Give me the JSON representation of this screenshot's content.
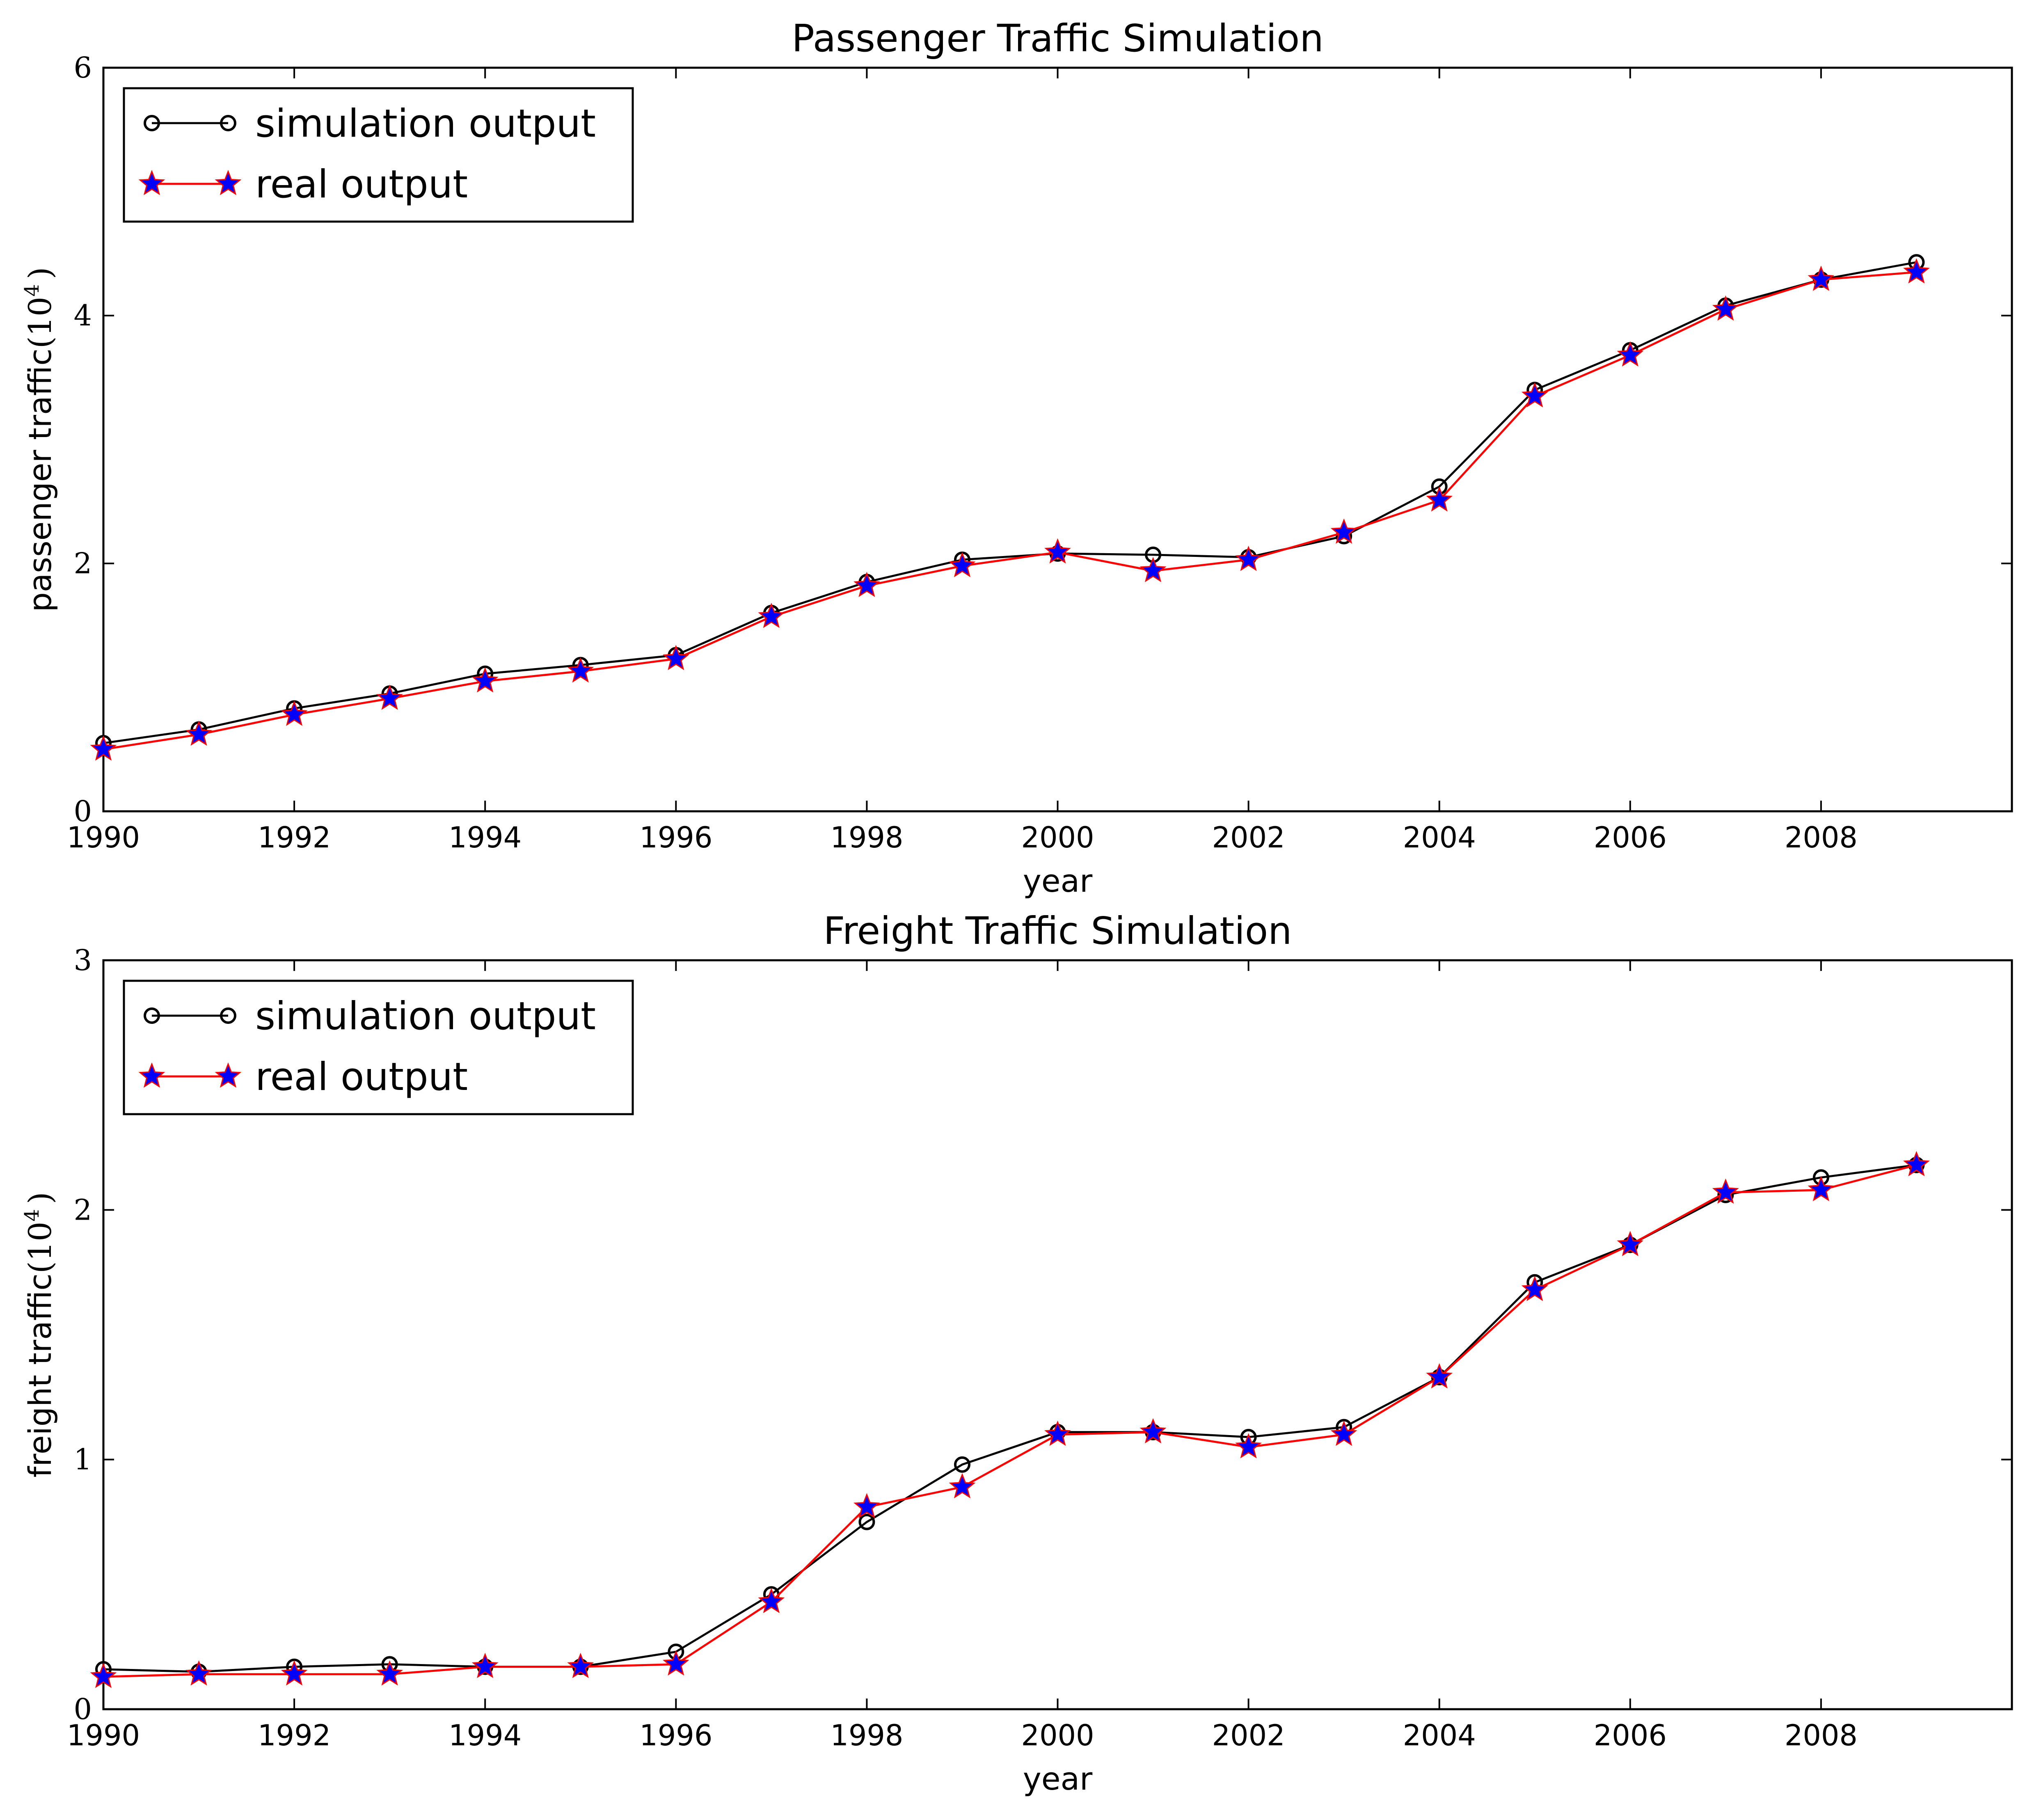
{
  "chart_data": [
    {
      "type": "line",
      "title": "Passenger Traffic Simulation",
      "xlabel": "year",
      "ylabel_prefix": "passenger traffic",
      "ylabel_unit_base": "(10",
      "ylabel_unit_exp": "4",
      "ylabel_unit_close": ")",
      "xlim": [
        1990,
        2010
      ],
      "ylim": [
        0,
        6
      ],
      "x_ticks": [
        1990,
        1992,
        1994,
        1996,
        1998,
        2000,
        2002,
        2004,
        2006,
        2008
      ],
      "y_ticks": [
        0,
        2,
        4,
        6
      ],
      "grid": false,
      "legend_position": "upper-left",
      "x": [
        1990,
        1991,
        1992,
        1993,
        1994,
        1995,
        1996,
        1997,
        1998,
        1999,
        2000,
        2001,
        2002,
        2003,
        2004,
        2005,
        2006,
        2007,
        2008,
        2009
      ],
      "series": [
        {
          "name": "simulation output",
          "color": "#000000",
          "marker": "circle",
          "values": [
            0.55,
            0.66,
            0.83,
            0.95,
            1.11,
            1.18,
            1.26,
            1.6,
            1.85,
            2.03,
            2.08,
            2.07,
            2.05,
            2.22,
            2.62,
            3.4,
            3.72,
            4.08,
            4.29,
            4.43
          ]
        },
        {
          "name": "real output",
          "color": "#ff0000",
          "marker": "star",
          "marker_color": "#0000ff",
          "values": [
            0.5,
            0.62,
            0.78,
            0.91,
            1.05,
            1.13,
            1.23,
            1.57,
            1.82,
            1.98,
            2.09,
            1.94,
            2.03,
            2.25,
            2.51,
            3.35,
            3.68,
            4.05,
            4.29,
            4.35
          ]
        }
      ]
    },
    {
      "type": "line",
      "title": "Freight Traffic Simulation",
      "xlabel": "year",
      "ylabel_prefix": "freight traffic",
      "ylabel_unit_base": "(10",
      "ylabel_unit_exp": "4",
      "ylabel_unit_close": ")",
      "xlim": [
        1990,
        2010
      ],
      "ylim": [
        0,
        3
      ],
      "x_ticks": [
        1990,
        1992,
        1994,
        1996,
        1998,
        2000,
        2002,
        2004,
        2006,
        2008
      ],
      "y_ticks": [
        0,
        1,
        2,
        3
      ],
      "grid": false,
      "legend_position": "upper-left",
      "x": [
        1990,
        1991,
        1992,
        1993,
        1994,
        1995,
        1996,
        1997,
        1998,
        1999,
        2000,
        2001,
        2002,
        2003,
        2004,
        2005,
        2006,
        2007,
        2008,
        2009
      ],
      "series": [
        {
          "name": "simulation output",
          "color": "#000000",
          "marker": "circle",
          "values": [
            0.16,
            0.15,
            0.17,
            0.18,
            0.17,
            0.17,
            0.23,
            0.46,
            0.75,
            0.98,
            1.11,
            1.11,
            1.09,
            1.13,
            1.33,
            1.71,
            1.86,
            2.06,
            2.13,
            2.18
          ]
        },
        {
          "name": "real output",
          "color": "#ff0000",
          "marker": "star",
          "marker_color": "#0000ff",
          "values": [
            0.13,
            0.14,
            0.14,
            0.14,
            0.17,
            0.17,
            0.18,
            0.43,
            0.81,
            0.89,
            1.1,
            1.11,
            1.05,
            1.1,
            1.33,
            1.68,
            1.86,
            2.07,
            2.08,
            2.18
          ]
        }
      ]
    }
  ]
}
